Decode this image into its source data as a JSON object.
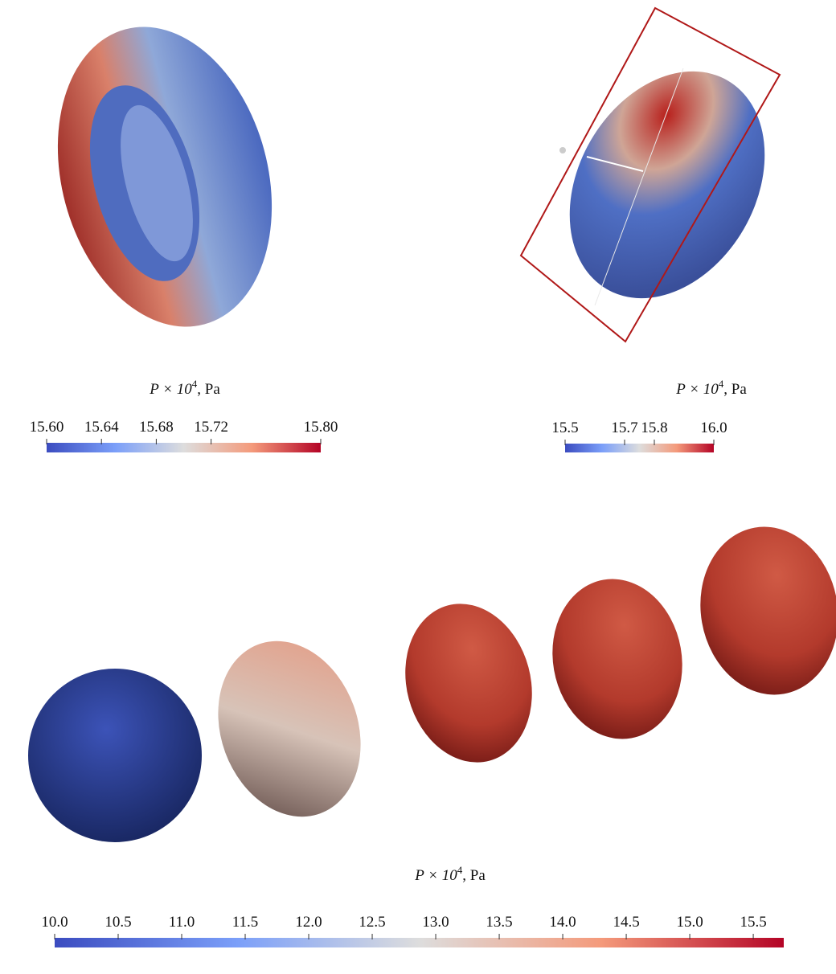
{
  "colorbars": [
    {
      "title": {
        "base": "P × 10",
        "exponent": "4",
        "suffix": ", Pa"
      },
      "range": [
        15.6,
        15.8
      ],
      "ticks": [
        {
          "value": 15.6,
          "label": "15.60"
        },
        {
          "value": 15.64,
          "label": "15.64"
        },
        {
          "value": 15.68,
          "label": "15.68"
        },
        {
          "value": 15.72,
          "label": "15.72"
        },
        {
          "value": 15.8,
          "label": "15.80"
        }
      ]
    },
    {
      "title": {
        "base": "P × 10",
        "exponent": "4",
        "suffix": ", Pa"
      },
      "range": [
        15.5,
        16.0
      ],
      "ticks": [
        15.5,
        15.7,
        15.8,
        {
          "value": 16,
          "label": "16.0"
        }
      ]
    },
    {
      "title": {
        "base": "P × 10",
        "exponent": "4",
        "suffix": ", Pa"
      },
      "range": [
        10,
        15.74
      ],
      "ticks": [
        {
          "value": 10,
          "label": "10.0"
        },
        10.5,
        {
          "value": 11,
          "label": "11.0"
        },
        11.5,
        {
          "value": 12,
          "label": "12.0"
        },
        12.5,
        {
          "value": 13,
          "label": "13.0"
        },
        13.5,
        {
          "value": 14,
          "label": "14.0"
        },
        14.5,
        {
          "value": 15,
          "label": "15.0"
        },
        15.5
      ]
    }
  ]
}
